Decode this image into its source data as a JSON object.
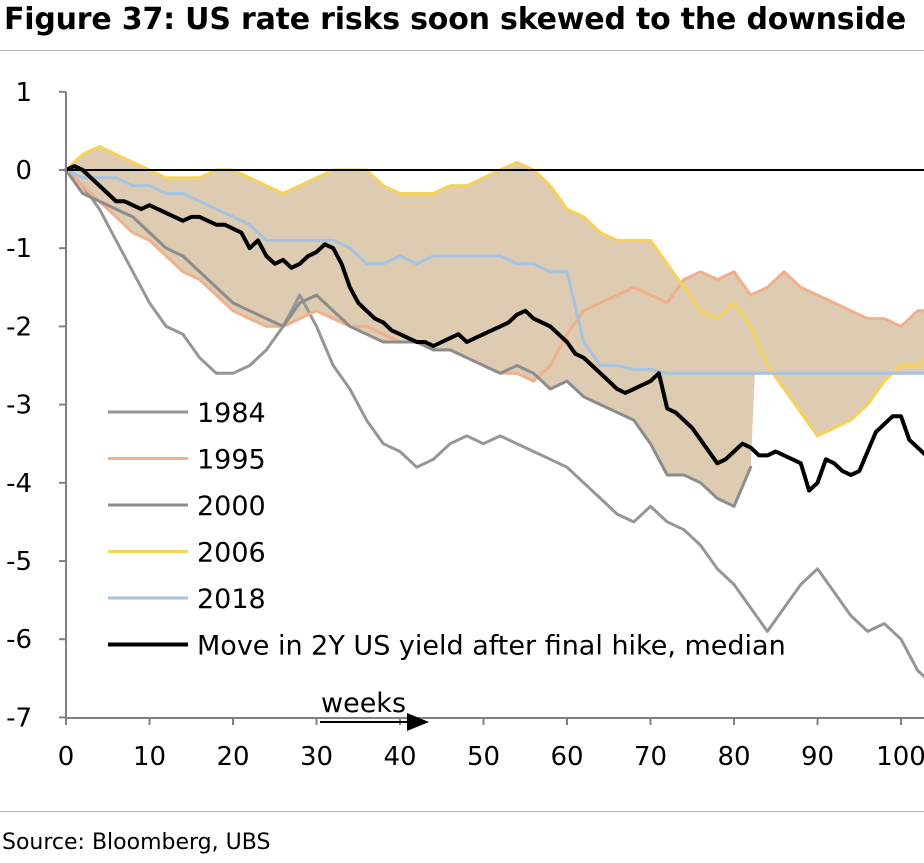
{
  "title": "Figure 37: US rate risks soon skewed to the downside",
  "source": "Source: Bloomberg, UBS",
  "chart_data": {
    "type": "line",
    "xlabel": "",
    "ylabel": "",
    "annotation": "weeks",
    "xlim": [
      0,
      103
    ],
    "ylim": [
      -7,
      1
    ],
    "xticks": [
      "0",
      "10",
      "20",
      "30",
      "40",
      "50",
      "60",
      "70",
      "80",
      "90",
      "100"
    ],
    "yticks": [
      "1",
      "0",
      "-1",
      "-2",
      "-3",
      "-4",
      "-5",
      "-6",
      "-7"
    ],
    "legend_position": "bottom-left",
    "shaded_range": {
      "between": "min-max of 1995/2000/2006/2018",
      "color": "#ddcbb2"
    },
    "series": [
      {
        "name": "1984",
        "color": "#969696",
        "width": 3,
        "x": [
          0,
          2,
          4,
          6,
          8,
          10,
          12,
          14,
          16,
          18,
          20,
          22,
          24,
          26,
          28,
          30,
          32,
          34,
          36,
          38,
          40,
          42,
          44,
          46,
          48,
          50,
          52,
          54,
          56,
          58,
          60,
          62,
          64,
          66,
          68,
          70,
          72,
          74,
          76,
          78,
          80,
          82,
          84,
          86,
          88,
          90,
          92,
          94,
          96,
          98,
          100,
          102,
          103
        ],
        "y": [
          0,
          -0.2,
          -0.5,
          -0.9,
          -1.3,
          -1.7,
          -2.0,
          -2.1,
          -2.4,
          -2.6,
          -2.6,
          -2.5,
          -2.3,
          -2.0,
          -1.6,
          -2.0,
          -2.5,
          -2.8,
          -3.2,
          -3.5,
          -3.6,
          -3.8,
          -3.7,
          -3.5,
          -3.4,
          -3.5,
          -3.4,
          -3.5,
          -3.6,
          -3.7,
          -3.8,
          -4.0,
          -4.2,
          -4.4,
          -4.5,
          -4.3,
          -4.5,
          -4.6,
          -4.8,
          -5.1,
          -5.3,
          -5.6,
          -5.9,
          -5.6,
          -5.3,
          -5.1,
          -5.4,
          -5.7,
          -5.9,
          -5.8,
          -6.0,
          -6.4,
          -6.5
        ]
      },
      {
        "name": "1995",
        "color": "#f0b08c",
        "width": 3,
        "x": [
          0,
          2,
          4,
          6,
          8,
          10,
          12,
          14,
          16,
          18,
          20,
          22,
          24,
          26,
          28,
          30,
          32,
          34,
          36,
          38,
          40,
          42,
          44,
          46,
          48,
          50,
          52,
          54,
          56,
          58,
          60,
          62,
          64,
          66,
          68,
          70,
          72,
          74,
          76,
          78,
          80,
          82,
          84,
          86,
          88,
          90,
          92,
          94,
          96,
          98,
          100,
          102,
          103
        ],
        "y": [
          0,
          -0.2,
          -0.4,
          -0.6,
          -0.8,
          -0.9,
          -1.1,
          -1.3,
          -1.4,
          -1.6,
          -1.8,
          -1.9,
          -2.0,
          -2.0,
          -1.9,
          -1.8,
          -1.9,
          -2.0,
          -2.0,
          -2.1,
          -2.2,
          -2.2,
          -2.3,
          -2.3,
          -2.4,
          -2.5,
          -2.6,
          -2.6,
          -2.7,
          -2.5,
          -2.1,
          -1.8,
          -1.7,
          -1.6,
          -1.5,
          -1.6,
          -1.7,
          -1.4,
          -1.3,
          -1.4,
          -1.3,
          -1.6,
          -1.5,
          -1.3,
          -1.5,
          -1.6,
          -1.7,
          -1.8,
          -1.9,
          -1.9,
          -2.0,
          -1.8,
          -1.8
        ]
      },
      {
        "name": "2000",
        "color": "#8c8c8c",
        "width": 3,
        "x": [
          0,
          2,
          4,
          6,
          8,
          10,
          12,
          14,
          16,
          18,
          20,
          22,
          24,
          26,
          28,
          30,
          32,
          34,
          36,
          38,
          40,
          42,
          44,
          46,
          48,
          50,
          52,
          54,
          56,
          58,
          60,
          62,
          64,
          66,
          68,
          70,
          72,
          74,
          76,
          78,
          80,
          82
        ],
        "y": [
          0,
          -0.3,
          -0.4,
          -0.5,
          -0.6,
          -0.8,
          -1.0,
          -1.1,
          -1.3,
          -1.5,
          -1.7,
          -1.8,
          -1.9,
          -2.0,
          -1.7,
          -1.6,
          -1.8,
          -2.0,
          -2.1,
          -2.2,
          -2.2,
          -2.2,
          -2.3,
          -2.3,
          -2.4,
          -2.5,
          -2.6,
          -2.5,
          -2.6,
          -2.8,
          -2.7,
          -2.9,
          -3.0,
          -3.1,
          -3.2,
          -3.5,
          -3.9,
          -3.9,
          -4.0,
          -4.2,
          -4.3,
          -3.8
        ]
      },
      {
        "name": "2006",
        "color": "#f5d35a",
        "width": 3,
        "x": [
          0,
          2,
          4,
          6,
          8,
          10,
          12,
          14,
          16,
          18,
          20,
          22,
          24,
          26,
          28,
          30,
          32,
          34,
          36,
          38,
          40,
          42,
          44,
          46,
          48,
          50,
          52,
          54,
          56,
          58,
          60,
          62,
          64,
          66,
          68,
          70,
          72,
          74,
          76,
          78,
          80,
          82,
          84,
          86,
          88,
          90,
          92,
          94,
          96,
          98,
          100,
          102,
          103
        ],
        "y": [
          0,
          0.2,
          0.3,
          0.2,
          0.1,
          0.0,
          -0.1,
          -0.1,
          -0.1,
          0.0,
          0.0,
          -0.1,
          -0.2,
          -0.3,
          -0.2,
          -0.1,
          0.0,
          0.0,
          0.0,
          -0.2,
          -0.3,
          -0.3,
          -0.3,
          -0.2,
          -0.2,
          -0.1,
          0.0,
          0.1,
          0.0,
          -0.2,
          -0.5,
          -0.6,
          -0.8,
          -0.9,
          -0.9,
          -0.9,
          -1.2,
          -1.5,
          -1.8,
          -1.9,
          -1.7,
          -2.0,
          -2.5,
          -2.8,
          -3.1,
          -3.4,
          -3.3,
          -3.2,
          -3.0,
          -2.7,
          -2.5,
          -2.5,
          -2.4
        ]
      },
      {
        "name": "2018",
        "color": "#a6c3df",
        "width": 3,
        "x": [
          0,
          2,
          4,
          6,
          8,
          10,
          12,
          14,
          16,
          18,
          20,
          22,
          24,
          26,
          28,
          30,
          32,
          34,
          36,
          38,
          40,
          42,
          44,
          46,
          48,
          50,
          52,
          54,
          56,
          58,
          60,
          62,
          64,
          66,
          68,
          70,
          72,
          74,
          76,
          78,
          80,
          82,
          84,
          86,
          88,
          90,
          92,
          94,
          96,
          98,
          100,
          102,
          103
        ],
        "y": [
          0,
          -0.1,
          -0.1,
          -0.1,
          -0.2,
          -0.2,
          -0.3,
          -0.3,
          -0.4,
          -0.5,
          -0.6,
          -0.7,
          -0.9,
          -0.9,
          -0.9,
          -0.9,
          -0.9,
          -1.0,
          -1.2,
          -1.2,
          -1.1,
          -1.2,
          -1.1,
          -1.1,
          -1.1,
          -1.1,
          -1.1,
          -1.2,
          -1.2,
          -1.3,
          -1.3,
          -2.2,
          -2.5,
          -2.5,
          -2.55,
          -2.55,
          -2.6,
          -2.6,
          -2.6,
          -2.6,
          -2.6,
          -2.6,
          -2.6,
          -2.6,
          -2.6,
          -2.6,
          -2.6,
          -2.6,
          -2.6,
          -2.6,
          -2.6,
          -2.6,
          -2.6
        ]
      },
      {
        "name": "Move in 2Y US yield after final hike, median",
        "color": "#000000",
        "width": 4,
        "x": [
          0,
          1,
          2,
          3,
          4,
          5,
          6,
          7,
          8,
          9,
          10,
          11,
          12,
          13,
          14,
          15,
          16,
          17,
          18,
          19,
          20,
          21,
          22,
          23,
          24,
          25,
          26,
          27,
          28,
          29,
          30,
          31,
          32,
          33,
          34,
          35,
          36,
          37,
          38,
          39,
          40,
          41,
          42,
          43,
          44,
          45,
          46,
          47,
          48,
          49,
          50,
          51,
          52,
          53,
          54,
          55,
          56,
          57,
          58,
          59,
          60,
          61,
          62,
          63,
          64,
          65,
          66,
          67,
          68,
          69,
          70,
          71,
          72,
          73,
          74,
          75,
          76,
          77,
          78,
          79,
          80,
          81,
          82,
          83,
          84,
          85,
          86,
          87,
          88,
          89,
          90,
          91,
          92,
          93,
          94,
          95,
          96,
          97,
          98,
          99,
          100,
          101,
          102,
          103
        ],
        "y": [
          0,
          0.05,
          0.0,
          -0.1,
          -0.2,
          -0.3,
          -0.4,
          -0.4,
          -0.45,
          -0.5,
          -0.45,
          -0.5,
          -0.55,
          -0.6,
          -0.65,
          -0.6,
          -0.6,
          -0.65,
          -0.7,
          -0.7,
          -0.75,
          -0.8,
          -1.0,
          -0.9,
          -1.1,
          -1.2,
          -1.15,
          -1.25,
          -1.2,
          -1.1,
          -1.05,
          -0.95,
          -1.0,
          -1.2,
          -1.5,
          -1.7,
          -1.8,
          -1.9,
          -1.95,
          -2.05,
          -2.1,
          -2.15,
          -2.2,
          -2.2,
          -2.25,
          -2.2,
          -2.15,
          -2.1,
          -2.2,
          -2.15,
          -2.1,
          -2.05,
          -2.0,
          -1.95,
          -1.85,
          -1.8,
          -1.9,
          -1.95,
          -2.0,
          -2.1,
          -2.2,
          -2.35,
          -2.4,
          -2.5,
          -2.6,
          -2.7,
          -2.8,
          -2.85,
          -2.8,
          -2.75,
          -2.7,
          -2.6,
          -3.05,
          -3.1,
          -3.2,
          -3.3,
          -3.45,
          -3.6,
          -3.75,
          -3.7,
          -3.6,
          -3.5,
          -3.55,
          -3.65,
          -3.65,
          -3.6,
          -3.65,
          -3.7,
          -3.75,
          -4.1,
          -4.0,
          -3.7,
          -3.75,
          -3.85,
          -3.9,
          -3.85,
          -3.6,
          -3.35,
          -3.25,
          -3.15,
          -3.15,
          -3.45,
          -3.55,
          -3.65
        ]
      }
    ]
  }
}
